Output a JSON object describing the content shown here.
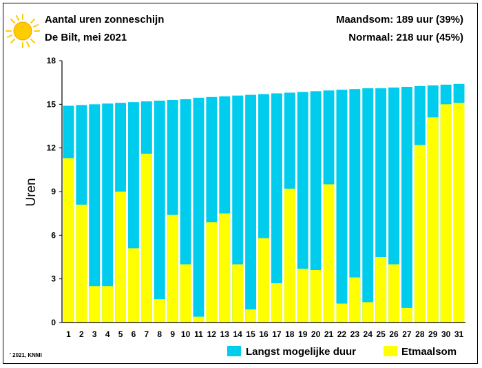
{
  "header": {
    "title": "Aantal uren zonneschijn",
    "subtitle": "De Bilt, mei 2021",
    "monthly_sum": "Maandsom: 189 uur (39%)",
    "normal": "Normaal: 218 uur (45%)"
  },
  "footer": {
    "copyright": "' 2021, KNMI"
  },
  "colors": {
    "max_duration": "#00ccee",
    "actual": "#ffff00",
    "sun": "#ffcc00"
  },
  "icons": {
    "logo": "sun-icon"
  },
  "chart_data": {
    "type": "bar",
    "stacked": "overlay",
    "categories": [
      "1",
      "2",
      "3",
      "4",
      "5",
      "6",
      "7",
      "8",
      "9",
      "10",
      "11",
      "12",
      "13",
      "14",
      "15",
      "16",
      "17",
      "18",
      "19",
      "20",
      "21",
      "22",
      "23",
      "24",
      "25",
      "26",
      "27",
      "28",
      "29",
      "30",
      "31"
    ],
    "series": [
      {
        "name": "Langst mogelijke duur",
        "color": "#00ccee",
        "values": [
          14.9,
          14.95,
          15.0,
          15.05,
          15.1,
          15.15,
          15.2,
          15.25,
          15.3,
          15.35,
          15.45,
          15.5,
          15.55,
          15.6,
          15.65,
          15.7,
          15.75,
          15.8,
          15.85,
          15.9,
          15.95,
          16.0,
          16.05,
          16.1,
          16.1,
          16.15,
          16.2,
          16.25,
          16.3,
          16.35,
          16.4
        ]
      },
      {
        "name": "Etmaalsom",
        "color": "#ffff00",
        "values": [
          11.3,
          8.1,
          2.5,
          2.5,
          9.0,
          5.1,
          11.6,
          1.6,
          7.4,
          4.0,
          0.4,
          6.9,
          7.5,
          4.0,
          0.9,
          5.8,
          2.7,
          9.2,
          3.7,
          3.6,
          9.5,
          1.3,
          3.1,
          1.4,
          4.5,
          4.0,
          1.0,
          12.2,
          14.1,
          15.0,
          15.1
        ]
      }
    ],
    "title": "Aantal uren zonneschijn",
    "xlabel": "",
    "ylabel": "Uren",
    "ylim": [
      0,
      18
    ],
    "yticks": [
      0,
      3,
      6,
      9,
      12,
      15,
      18
    ],
    "grid": false,
    "legend": "bottom"
  }
}
